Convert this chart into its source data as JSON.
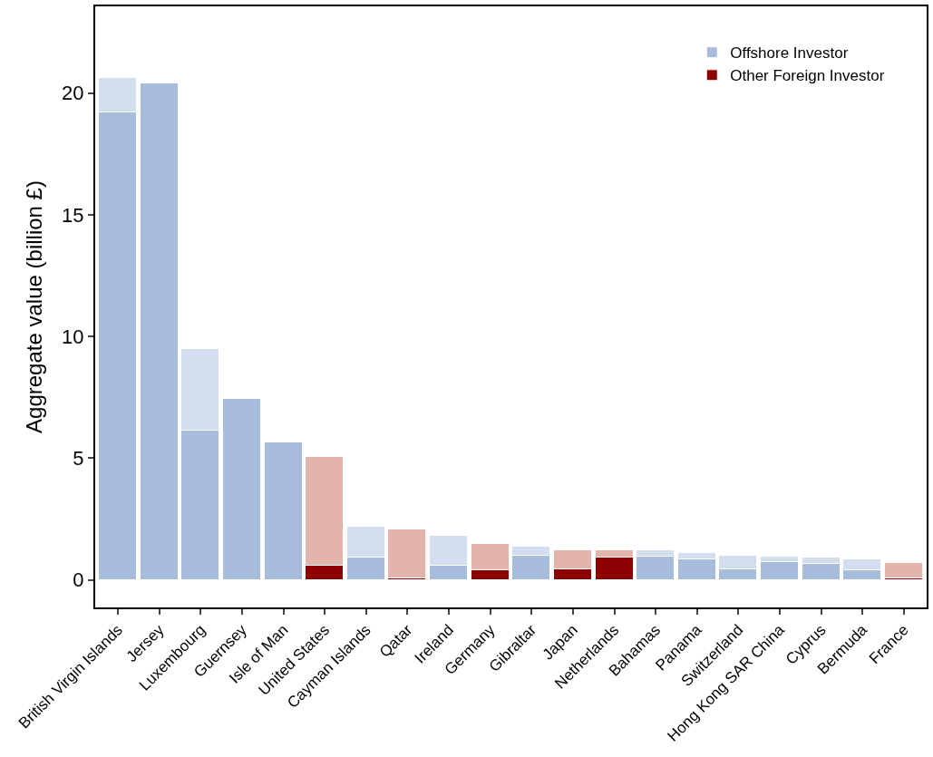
{
  "chart_data": {
    "type": "bar",
    "stacked": true,
    "ylabel": "Aggregate value (billion £)",
    "categories": [
      "British Virgin Islands",
      "Jersey",
      "Luxembourg",
      "Guernsey",
      "Isle of Man",
      "United States",
      "Cayman Islands",
      "Qatar",
      "Ireland",
      "Germany",
      "Gibraltar",
      "Japan",
      "Netherlands",
      "Bahamas",
      "Panama",
      "Switzerland",
      "Hong Kong SAR China",
      "Cyprus",
      "Bermuda",
      "France"
    ],
    "series": [
      {
        "name": "Offshore Investor",
        "color": "#a8bddb",
        "values": [
          19.2,
          20.4,
          6.15,
          7.43,
          5.63,
          null,
          0.9,
          null,
          0.6,
          null,
          1.01,
          null,
          null,
          0.94,
          0.86,
          0.45,
          0.75,
          0.64,
          0.38,
          null
        ]
      },
      {
        "name": "Other Foreign Investor",
        "color": "#8b0000",
        "values": [
          null,
          null,
          null,
          null,
          null,
          0.6,
          null,
          0.07,
          null,
          0.38,
          null,
          0.45,
          0.9,
          null,
          null,
          null,
          null,
          null,
          null,
          0.07
        ]
      },
      {
        "colors": [
          "#d2deed",
          "#d2deed",
          "#d2deed",
          "#d2deed",
          "#d2deed",
          "#e2b4ab",
          "#d2deed",
          "#e2b4ab",
          "#d2deed",
          "#e2b4ab",
          "#d2deed",
          "#e2b4ab",
          "#e2b4ab",
          "#d2deed",
          "#d2deed",
          "#d2deed",
          "#d2deed",
          "#d2deed",
          "#d2deed",
          "#e2b4ab"
        ],
        "values": [
          1.4,
          null,
          3.35,
          null,
          null,
          4.47,
          1.28,
          1.99,
          1.2,
          1.08,
          0.34,
          0.75,
          0.3,
          0.26,
          0.23,
          0.56,
          0.19,
          0.26,
          0.45,
          0.64
        ]
      }
    ],
    "ylim": [
      -1.13,
      23.56
    ],
    "yticks": [
      0,
      5,
      10,
      15,
      20
    ],
    "legend": "top right"
  }
}
